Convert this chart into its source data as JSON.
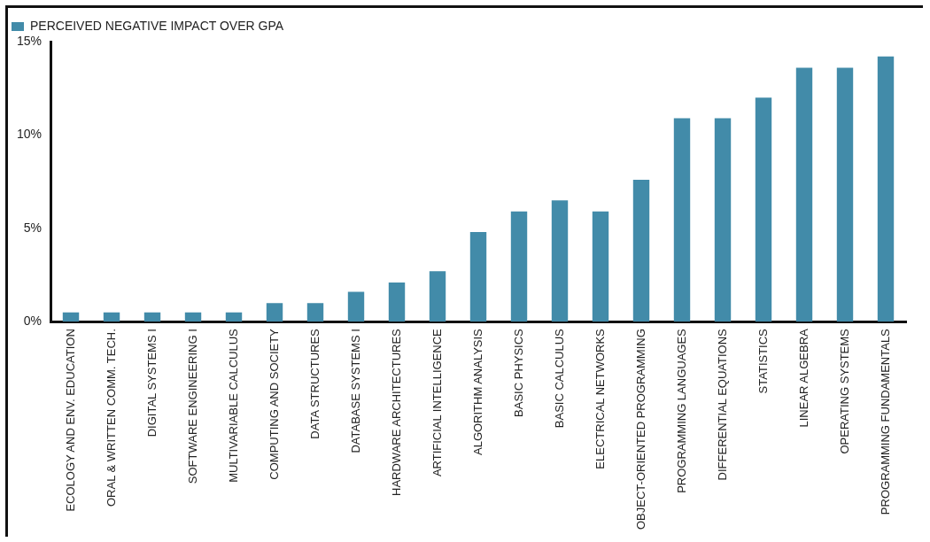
{
  "chart_data": {
    "type": "bar",
    "categories": [
      "ECOLOGY AND ENV. EDUCATION",
      "ORAL & WRITTEN COMM. TECH.",
      "DIGITAL SYSTEMS I",
      "SOFTWARE ENGINEERING I",
      "MULTIVARIABLE CALCULUS",
      "COMPUTING AND SOCIETY",
      "DATA STRUCTURES",
      "DATABASE SYSTEMS I",
      "HARDWARE ARCHITECTURES",
      "ARTIFICIAL INTELLIGENCE",
      "ALGORITHM ANALYSIS",
      "BASIC PHYSICS",
      "BASIC CALCULUS",
      "ELECTRICAL NETWORKS",
      "OBJECT-ORIENTED PROGRAMMING",
      "PROGRAMMING LANGUAGES",
      "DIFFERENTIAL EQUATIONS",
      "STATISTICS",
      "LINEAR ALGEBRA",
      "OPERATING SYSTEMS",
      "PROGRAMMING FUNDAMENTALS"
    ],
    "series": [
      {
        "name": "PERCEIVED NEGATIVE IMPACT OVER GPA",
        "color": "#428ba9",
        "values": [
          0.5,
          0.5,
          0.5,
          0.5,
          0.5,
          1.0,
          1.0,
          1.6,
          2.1,
          2.7,
          4.8,
          5.9,
          6.5,
          5.9,
          7.6,
          10.9,
          10.9,
          12.0,
          13.6,
          13.6,
          14.2
        ]
      }
    ],
    "ylim": [
      0,
      15
    ],
    "yticks": [
      {
        "value": 0,
        "label": "0%"
      },
      {
        "value": 5,
        "label": "5%"
      },
      {
        "value": 10,
        "label": "10%"
      },
      {
        "value": 15,
        "label": "15%"
      }
    ],
    "grid": false,
    "legend": "top left"
  }
}
